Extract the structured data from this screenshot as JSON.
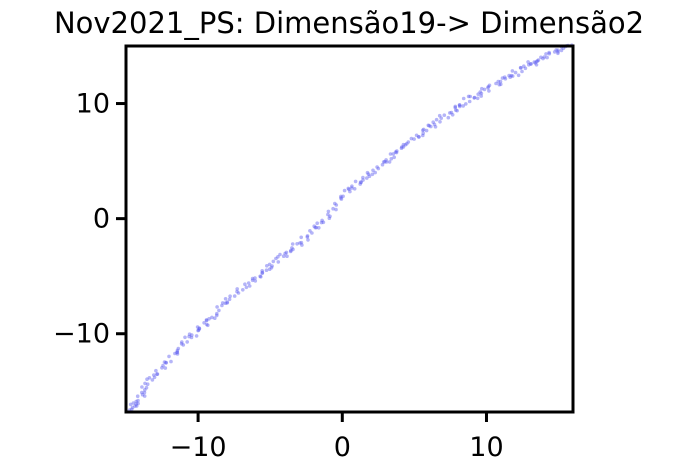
{
  "chart_data": {
    "type": "scatter",
    "title": "Nov2021_PS: Dimensão19-> Dimensão2",
    "xlabel": "",
    "ylabel": "",
    "xlim": [
      -15.0,
      16.0
    ],
    "ylim": [
      -16.8,
      15.0
    ],
    "x_ticks": [
      {
        "value": -10,
        "label": "−10"
      },
      {
        "value": 0,
        "label": "0"
      },
      {
        "value": 10,
        "label": "10"
      }
    ],
    "y_ticks": [
      {
        "value": -10,
        "label": "−10"
      },
      {
        "value": 0,
        "label": "0"
      },
      {
        "value": 10,
        "label": "10"
      }
    ],
    "grid": false,
    "point_color": "#5c5cf0",
    "point_opacity": 0.45,
    "trend_points": [
      [
        -14.6,
        -16.6
      ],
      [
        -14.2,
        -15.8
      ],
      [
        -13.6,
        -14.6
      ],
      [
        -12.8,
        -13.3
      ],
      [
        -11.9,
        -12.1
      ],
      [
        -10.9,
        -10.8
      ],
      [
        -10.0,
        -9.7
      ],
      [
        -9.1,
        -8.6
      ],
      [
        -8.1,
        -7.4
      ],
      [
        -7.1,
        -6.3
      ],
      [
        -6.0,
        -5.2
      ],
      [
        -5.0,
        -4.1
      ],
      [
        -4.0,
        -3.1
      ],
      [
        -3.0,
        -2.1
      ],
      [
        -2.0,
        -1.0
      ],
      [
        -1.0,
        0.1
      ],
      [
        0.0,
        2.0
      ],
      [
        1.0,
        3.0
      ],
      [
        2.0,
        4.0
      ],
      [
        3.0,
        4.9
      ],
      [
        4.0,
        6.0
      ],
      [
        5.0,
        6.9
      ],
      [
        6.0,
        7.9
      ],
      [
        7.0,
        8.8
      ],
      [
        8.0,
        9.6
      ],
      [
        9.0,
        10.5
      ],
      [
        10.0,
        11.2
      ],
      [
        11.0,
        12.0
      ],
      [
        12.0,
        12.7
      ],
      [
        13.0,
        13.4
      ],
      [
        14.0,
        14.1
      ],
      [
        15.0,
        14.6
      ],
      [
        15.8,
        15.0
      ]
    ]
  }
}
